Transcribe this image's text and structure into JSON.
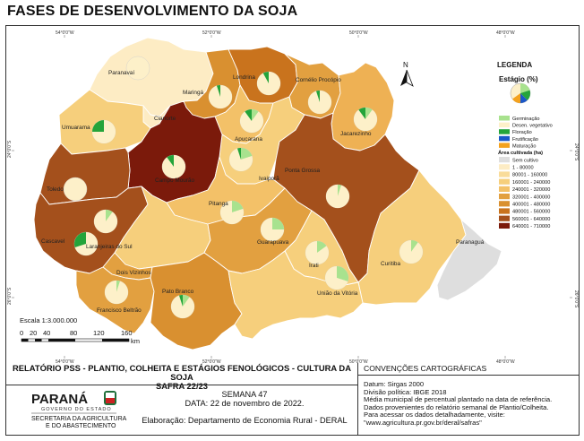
{
  "title": "FASES DE DESENVOLVIMENTO DA SOJA",
  "coords": {
    "top": [
      "54°0'0\"W",
      "52°0'0\"W",
      "50°0'0\"W",
      "48°0'0\"W"
    ],
    "bottom": [
      "54°0'0\"W",
      "52°0'0\"W",
      "50°0'0\"W",
      "48°0'0\"W"
    ],
    "left": [
      "24°0'0\"S",
      "26°0'0\"S"
    ],
    "right": [
      "24°0'0\"S",
      "26°0'0\"S"
    ]
  },
  "north": "N",
  "regions": [
    {
      "name": "Paranavaí",
      "fill": "#fdecc4",
      "pie": {
        "ger": 0,
        "dev": 100,
        "flo": 0,
        "fru": 0,
        "mat": 0
      }
    },
    {
      "name": "Maringá",
      "fill": "#d99030",
      "pie": {
        "ger": 0,
        "dev": 95,
        "flo": 5,
        "fru": 0,
        "mat": 0
      }
    },
    {
      "name": "Londrina",
      "fill": "#c9731d",
      "pie": {
        "ger": 0,
        "dev": 92,
        "flo": 8,
        "fru": 0,
        "mat": 0
      }
    },
    {
      "name": "Cornélio Procópio",
      "fill": "#e2a040",
      "pie": {
        "ger": 0,
        "dev": 95,
        "flo": 5,
        "fru": 0,
        "mat": 0
      }
    },
    {
      "name": "Cianorte",
      "fill": "#fdecc4",
      "pie": null
    },
    {
      "name": "Umuarama",
      "fill": "#f6cf7c",
      "pie": {
        "ger": 0,
        "dev": 75,
        "flo": 25,
        "fru": 0,
        "mat": 0
      }
    },
    {
      "name": "Apucarana",
      "fill": "#f3c168",
      "pie": {
        "ger": 10,
        "dev": 80,
        "flo": 10,
        "fru": 0,
        "mat": 0
      }
    },
    {
      "name": "Jacarezinho",
      "fill": "#eeb154",
      "pie": {
        "ger": 10,
        "dev": 80,
        "flo": 10,
        "fru": 0,
        "mat": 0
      }
    },
    {
      "name": "Ivaiporã",
      "fill": "#f6cf7c",
      "pie": {
        "ger": 20,
        "dev": 75,
        "flo": 5,
        "fru": 0,
        "mat": 0
      }
    },
    {
      "name": "Campo Mourão",
      "fill": "#7b1a0b",
      "pie": {
        "ger": 0,
        "dev": 90,
        "flo": 10,
        "fru": 0,
        "mat": 0
      }
    },
    {
      "name": "Toledo",
      "fill": "#a4501c",
      "pie": {
        "ger": 0,
        "dev": 100,
        "flo": 0,
        "fru": 0,
        "mat": 0
      }
    },
    {
      "name": "Ponta Grossa",
      "fill": "#a4501c",
      "pie": {
        "ger": 5,
        "dev": 95,
        "flo": 0,
        "fru": 0,
        "mat": 0
      }
    },
    {
      "name": "Pitanga",
      "fill": "#f3c168",
      "pie": {
        "ger": 20,
        "dev": 80,
        "flo": 0,
        "fru": 0,
        "mat": 0
      }
    },
    {
      "name": "Cascavel",
      "fill": "#a4501c",
      "pie": {
        "ger": 0,
        "dev": 70,
        "flo": 30,
        "fru": 0,
        "mat": 0
      }
    },
    {
      "name": "Laranjeiras do Sul",
      "fill": "#f6cf7c",
      "pie": {
        "ger": 10,
        "dev": 90,
        "flo": 0,
        "fru": 0,
        "mat": 0
      }
    },
    {
      "name": "Guarapuava",
      "fill": "#e2a040",
      "pie": {
        "ger": 25,
        "dev": 75,
        "flo": 0,
        "fru": 0,
        "mat": 0
      }
    },
    {
      "name": "Irati",
      "fill": "#f6cf7c",
      "pie": {
        "ger": 15,
        "dev": 85,
        "flo": 0,
        "fru": 0,
        "mat": 0
      }
    },
    {
      "name": "Curitiba",
      "fill": "#f6cf7c",
      "pie": {
        "ger": 10,
        "dev": 90,
        "flo": 0,
        "fru": 0,
        "mat": 0
      }
    },
    {
      "name": "Paranaguá",
      "fill": "#dedede",
      "pie": null
    },
    {
      "name": "Dois Vizinhos",
      "fill": "#e2a040",
      "pie": null
    },
    {
      "name": "Francisco Beltrão",
      "fill": "#e2a040",
      "pie": {
        "ger": 5,
        "dev": 95,
        "flo": 0,
        "fru": 0,
        "mat": 0
      }
    },
    {
      "name": "Pato Branco",
      "fill": "#d99030",
      "pie": {
        "ger": 10,
        "dev": 85,
        "flo": 5,
        "fru": 0,
        "mat": 0
      }
    },
    {
      "name": "União da Vitória",
      "fill": "#f6cf7c",
      "pie": {
        "ger": 30,
        "dev": 70,
        "flo": 0,
        "fru": 0,
        "mat": 0
      }
    }
  ],
  "legend": {
    "title": "LEGENDA",
    "subtitle": "Estágio (%)",
    "stages": [
      {
        "label": "Germinação",
        "color": "#a8e28e"
      },
      {
        "label": "Desen. vegetativo",
        "color": "#fdf0c9"
      },
      {
        "label": "Floração",
        "color": "#24a43a"
      },
      {
        "label": "Frutificação",
        "color": "#1a57c8"
      },
      {
        "label": "Maturação",
        "color": "#f4a21e"
      }
    ],
    "area_title": "Área cultivada (ha)",
    "classes": [
      {
        "label": "Sem cultivo",
        "color": "#dedede"
      },
      {
        "label": "1 - 80000",
        "color": "#fdecc4"
      },
      {
        "label": "80001 - 160000",
        "color": "#f9dc9a"
      },
      {
        "label": "160001 - 240000",
        "color": "#f6cf7c"
      },
      {
        "label": "240001 - 320000",
        "color": "#f3c168"
      },
      {
        "label": "320001 - 400000",
        "color": "#e2a040"
      },
      {
        "label": "400001 - 480000",
        "color": "#d99030"
      },
      {
        "label": "480001 - 560000",
        "color": "#c9731d"
      },
      {
        "label": "560001 - 640000",
        "color": "#a4501c"
      },
      {
        "label": "640001 - 710000",
        "color": "#7b1a0b"
      }
    ]
  },
  "scale": {
    "label": "Escala 1:3.000.000",
    "ticks": [
      "0",
      "20",
      "40",
      "80",
      "120",
      "160"
    ],
    "unit": "km"
  },
  "footer": {
    "report_title_line1": "RELATÓRIO PSS - PLANTIO, COLHEITA E ESTÁGIOS FENOLÓGICOS - CULTURA DA SOJA",
    "report_title_line2": "SAFRA 22/23",
    "logo_name": "PARANÁ",
    "logo_sub": "GOVERNO DO ESTADO",
    "logo_dept1": "SECRETARIA DA AGRICULTURA",
    "logo_dept2": "E DO ABASTECIMENTO",
    "week": "SEMANA 47",
    "date": "DATA: 22 de novembro de 2022.",
    "elaboration": "Elaboração: Departamento de Economia Rural - DERAL",
    "conventions_title": "CONVENÇÕES CARTOGRÁFICAS",
    "conventions": [
      "Datum: Sirgas 2000",
      "Divisão política: IBGE 2018",
      "Média municipal de percentual plantado na data de referência.",
      "Dados provenientes do relatório semanal de Plantio/Colheita.",
      "Para acessar os dados detalhadamente, visite:",
      "\"www.agricultura.pr.gov.br/deral/safras\""
    ]
  }
}
